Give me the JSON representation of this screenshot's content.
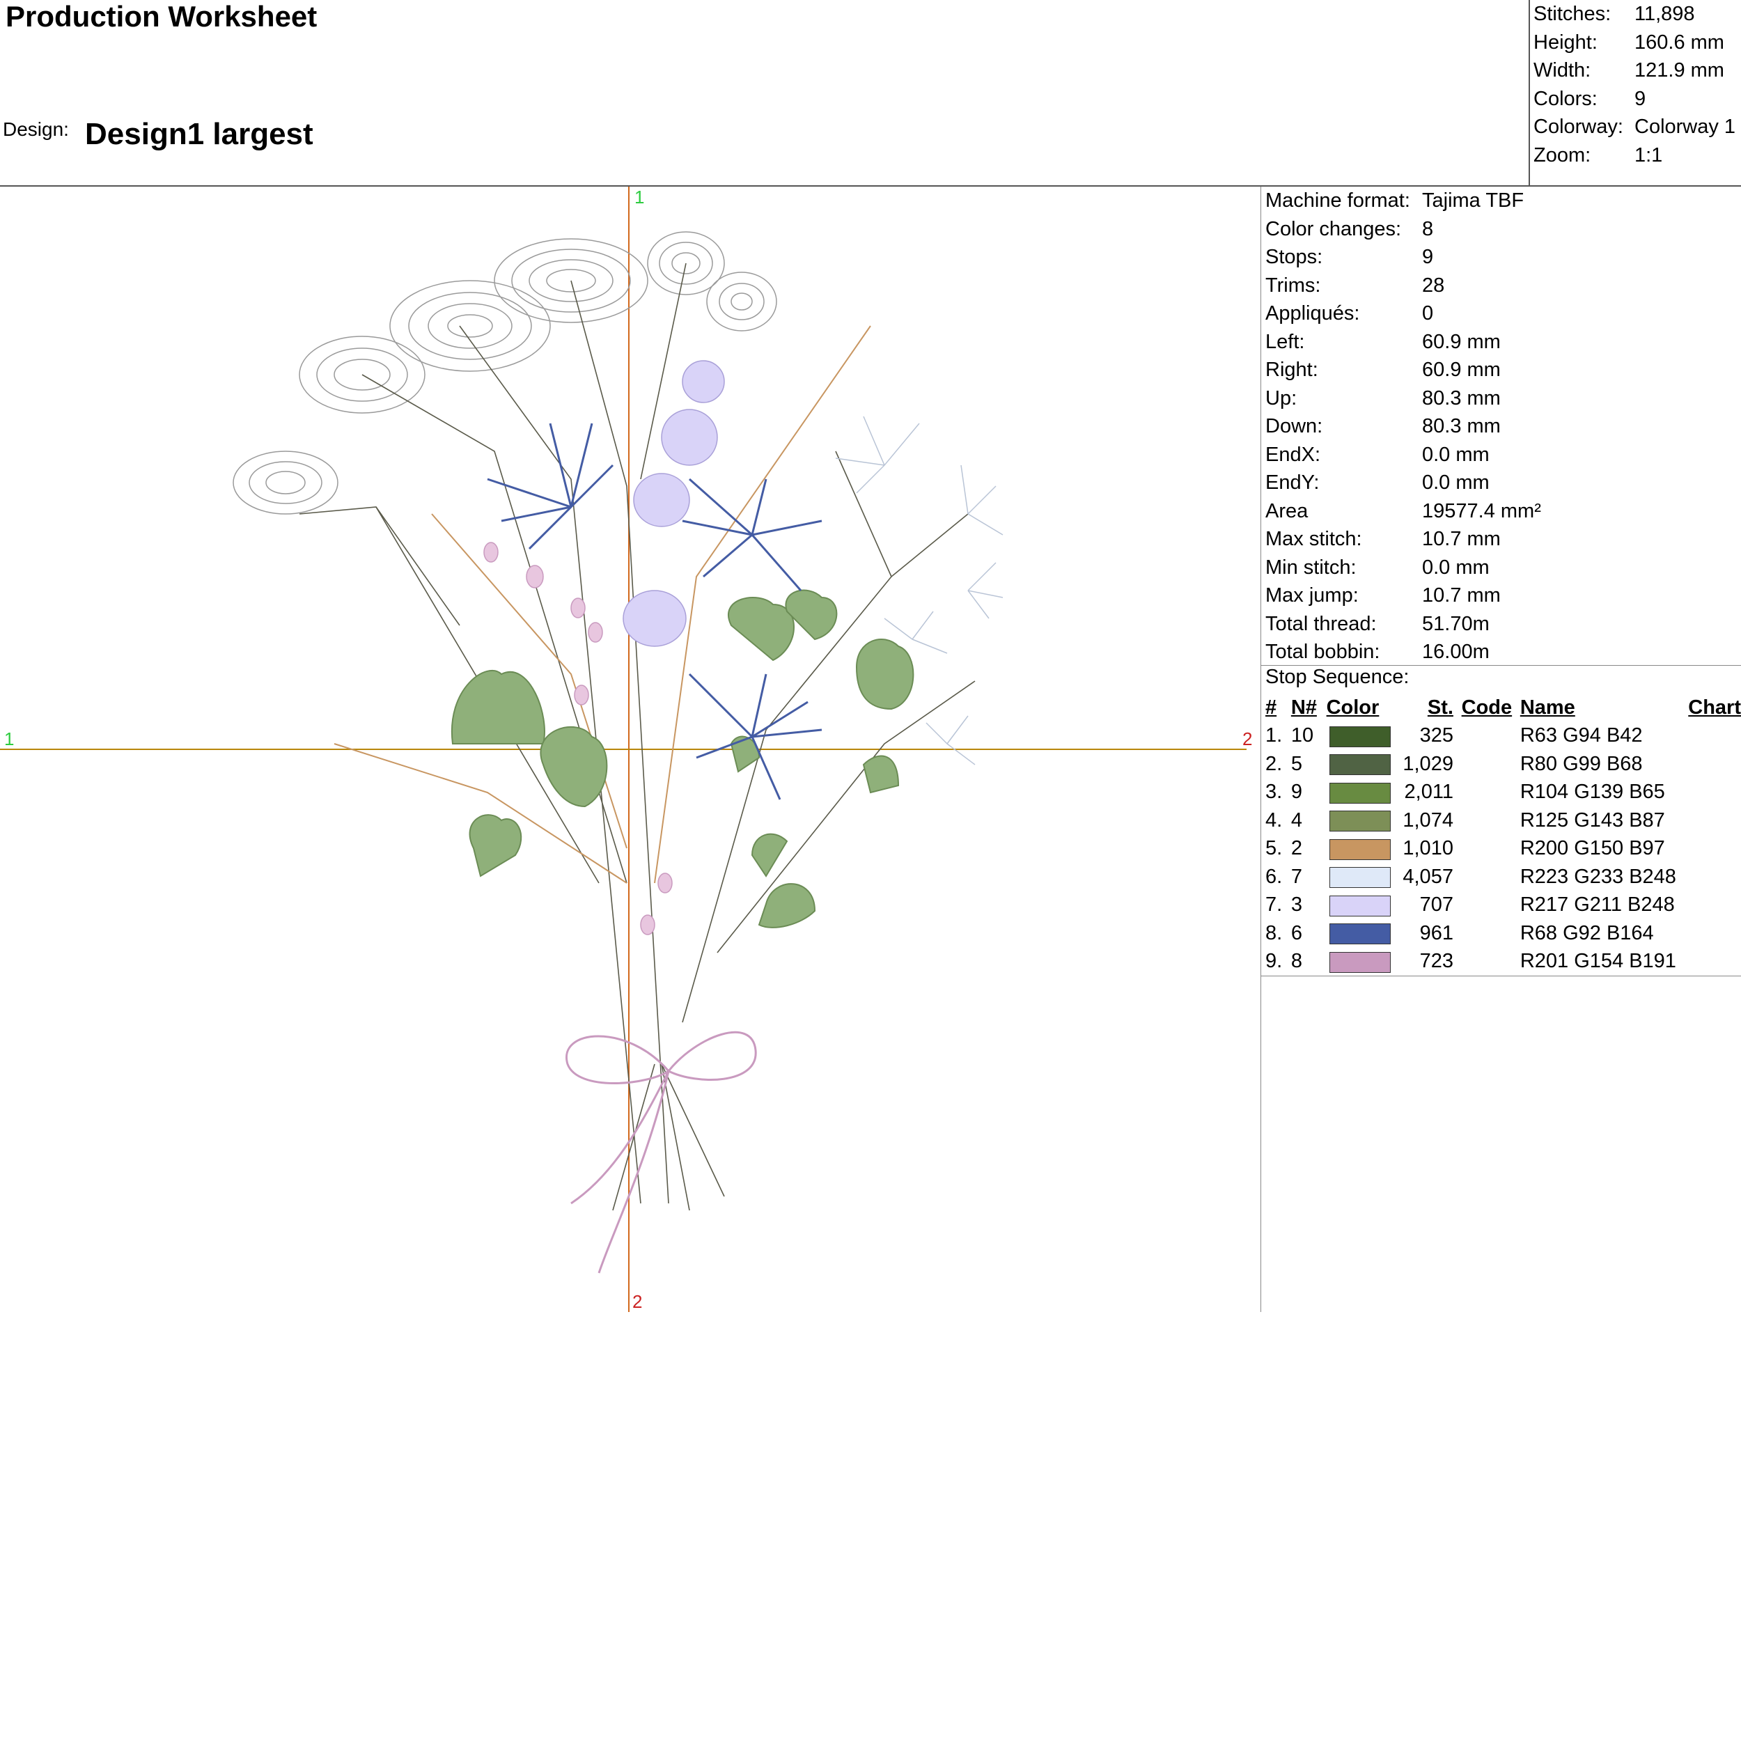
{
  "header": {
    "title": "Production Worksheet",
    "design_label": "Design:",
    "design_name": "Design1 largest"
  },
  "stats": [
    {
      "label": "Stitches:",
      "value": "11,898"
    },
    {
      "label": "Height:",
      "value": "160.6 mm"
    },
    {
      "label": "Width:",
      "value": "121.9 mm"
    },
    {
      "label": "Colors:",
      "value": "9"
    },
    {
      "label": "Colorway:",
      "value": "Colorway 1"
    },
    {
      "label": "Zoom:",
      "value": "1:1"
    }
  ],
  "specs": [
    {
      "label": "Machine format:",
      "value": "Tajima TBF"
    },
    {
      "label": "Color changes:",
      "value": "8"
    },
    {
      "label": "Stops:",
      "value": "9"
    },
    {
      "label": "Trims:",
      "value": "28"
    },
    {
      "label": "Appliqués:",
      "value": "0"
    },
    {
      "label": "Left:",
      "value": "60.9 mm"
    },
    {
      "label": "Right:",
      "value": "60.9 mm"
    },
    {
      "label": "Up:",
      "value": "80.3 mm"
    },
    {
      "label": "Down:",
      "value": "80.3 mm"
    },
    {
      "label": "EndX:",
      "value": "0.0 mm"
    },
    {
      "label": "EndY:",
      "value": "0.0 mm"
    },
    {
      "label": "Area",
      "value": "19577.4 mm²"
    },
    {
      "label": "Max stitch:",
      "value": "10.7 mm"
    },
    {
      "label": "Min stitch:",
      "value": "0.0 mm"
    },
    {
      "label": "Max jump:",
      "value": "10.7 mm"
    },
    {
      "label": "Total thread:",
      "value": "51.70m"
    },
    {
      "label": "Total bobbin:",
      "value": "16.00m"
    }
  ],
  "stop_sequence": {
    "label": "Stop Sequence:",
    "headers": {
      "num": "#",
      "n": "N#",
      "color": "Color",
      "st": "St.",
      "code": "Code",
      "name": "Name",
      "chart": "Chart"
    },
    "rows": [
      {
        "num": "1.",
        "n": "10",
        "hex": "#3F5E2A",
        "st": "325",
        "code": "",
        "name": "R63 G94 B42"
      },
      {
        "num": "2.",
        "n": "5",
        "hex": "#506344",
        "st": "1,029",
        "code": "",
        "name": "R80 G99 B68"
      },
      {
        "num": "3.",
        "n": "9",
        "hex": "#688B41",
        "st": "2,011",
        "code": "",
        "name": "R104 G139 B65"
      },
      {
        "num": "4.",
        "n": "4",
        "hex": "#7D8F57",
        "st": "1,074",
        "code": "",
        "name": "R125 G143 B87"
      },
      {
        "num": "5.",
        "n": "2",
        "hex": "#C89661",
        "st": "1,010",
        "code": "",
        "name": "R200 G150 B97"
      },
      {
        "num": "6.",
        "n": "7",
        "hex": "#DFE9F8",
        "st": "4,057",
        "code": "",
        "name": "R223 G233 B248"
      },
      {
        "num": "7.",
        "n": "3",
        "hex": "#D9D3F8",
        "st": "707",
        "code": "",
        "name": "R217 G211 B248"
      },
      {
        "num": "8.",
        "n": "6",
        "hex": "#445CA4",
        "st": "961",
        "code": "",
        "name": "R68 G92 B164"
      },
      {
        "num": "9.",
        "n": "8",
        "hex": "#C99ABF",
        "st": "723",
        "code": "",
        "name": "R201 G154 B191"
      }
    ]
  },
  "axis_markers": {
    "top": "1",
    "left": "1",
    "right": "2",
    "bottom": "2"
  },
  "colors": {
    "axis_v": "#D2691E",
    "axis_h": "#B8860B",
    "marker_green": "#2ECC40",
    "marker_red": "#CC2222"
  }
}
